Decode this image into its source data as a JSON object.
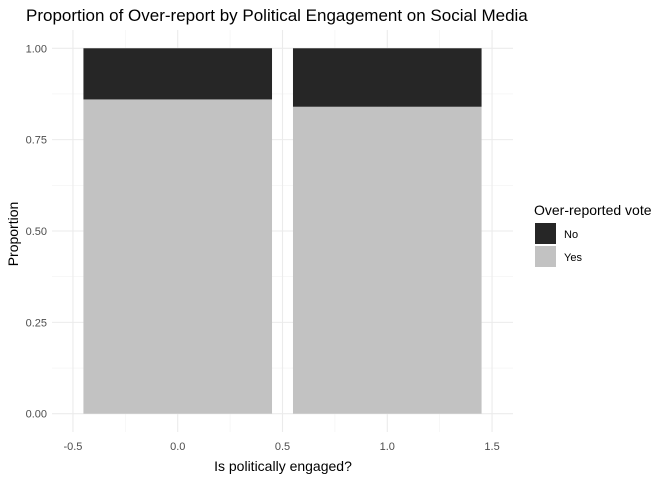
{
  "chart_data": {
    "type": "bar",
    "stacked": true,
    "title": "Proportion of Over-report by Political Engagement on Social Media",
    "xlabel": "Is politically engaged?",
    "ylabel": "Proportion",
    "x": [
      0,
      1
    ],
    "bar_width": 0.9,
    "xlim": [
      -0.5,
      1.5
    ],
    "ylim": [
      0,
      1
    ],
    "xticks": [
      -0.5,
      0.0,
      0.5,
      1.0,
      1.5
    ],
    "xtick_labels": [
      "-0.5",
      "0.0",
      "0.5",
      "1.0",
      "1.5"
    ],
    "yticks": [
      0,
      0.25,
      0.5,
      0.75,
      1.0
    ],
    "ytick_labels": [
      "0.00",
      "0.25",
      "0.50",
      "0.75",
      "1.00"
    ],
    "series": [
      {
        "name": "Yes",
        "color": "#c2c2c2",
        "values": [
          0.86,
          0.84
        ]
      },
      {
        "name": "No",
        "color": "#262626",
        "values": [
          0.14,
          0.16
        ]
      }
    ],
    "legend": {
      "title": "Over-reported vote",
      "position": "right",
      "order": [
        "No",
        "Yes"
      ]
    },
    "grid": true
  }
}
